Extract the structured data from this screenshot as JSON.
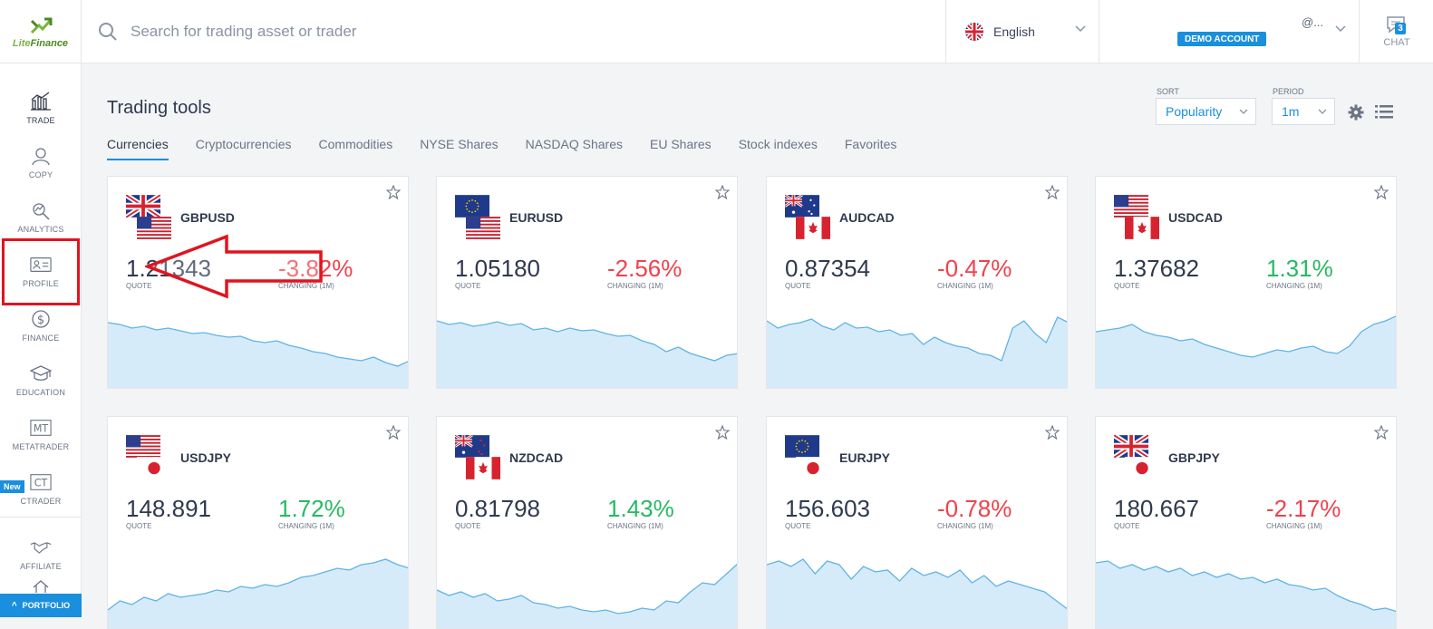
{
  "brand": {
    "logo_left": "Lite",
    "logo_right": "Finance"
  },
  "header": {
    "search_placeholder": "Search for trading asset or trader",
    "language": "English",
    "account_badge": "DEMO ACCOUNT",
    "account_email": "@...",
    "chat_label": "CHAT",
    "chat_count": "3"
  },
  "sidebar": {
    "items": [
      {
        "label": "TRADE",
        "icon": "chart-icon"
      },
      {
        "label": "COPY",
        "icon": "user-icon"
      },
      {
        "label": "ANALYTICS",
        "icon": "analytics-icon"
      },
      {
        "label": "PROFILE",
        "icon": "id-card-icon"
      },
      {
        "label": "FINANCE",
        "icon": "dollar-icon"
      },
      {
        "label": "EDUCATION",
        "icon": "graduation-cap-icon"
      },
      {
        "label": "METATRADER",
        "icon": "mt-icon",
        "glyph": "MT"
      },
      {
        "label": "CTRADER",
        "icon": "ct-icon",
        "glyph": "CT"
      },
      {
        "label": "AFFILIATE",
        "icon": "handshake-icon"
      }
    ],
    "new_badge": "New",
    "portfolio_label": "PORTFOLIO"
  },
  "main": {
    "title": "Trading tools",
    "tabs": [
      "Currencies",
      "Cryptocurrencies",
      "Commodities",
      "NYSE Shares",
      "NASDAQ Shares",
      "EU Shares",
      "Stock indexes",
      "Favorites"
    ],
    "sort": {
      "label": "SORT",
      "value": "Popularity"
    },
    "period": {
      "label": "PERIOD",
      "value": "1m"
    },
    "quote_label": "QUOTE",
    "change_label": "CHANGING (1M)",
    "cards": [
      {
        "symbol": "GBPUSD",
        "quote": "1.21343",
        "change": "-3.82%",
        "dir": "neg",
        "base": "uk",
        "quote_flag": "us",
        "trend": [
          0.72,
          0.7,
          0.66,
          0.68,
          0.64,
          0.66,
          0.63,
          0.6,
          0.61,
          0.58,
          0.56,
          0.57,
          0.52,
          0.5,
          0.52,
          0.47,
          0.44,
          0.4,
          0.38,
          0.34,
          0.32,
          0.3,
          0.34,
          0.28,
          0.24,
          0.3
        ]
      },
      {
        "symbol": "EURUSD",
        "quote": "1.05180",
        "change": "-2.56%",
        "dir": "neg",
        "base": "eu",
        "quote_flag": "us",
        "trend": [
          0.74,
          0.7,
          0.72,
          0.68,
          0.7,
          0.73,
          0.69,
          0.71,
          0.64,
          0.66,
          0.62,
          0.66,
          0.63,
          0.64,
          0.6,
          0.57,
          0.58,
          0.52,
          0.48,
          0.4,
          0.45,
          0.38,
          0.34,
          0.3,
          0.36,
          0.38
        ]
      },
      {
        "symbol": "AUDCAD",
        "quote": "0.87354",
        "change": "-0.47%",
        "dir": "neg",
        "base": "au",
        "quote_flag": "ca",
        "trend": [
          0.74,
          0.66,
          0.7,
          0.72,
          0.76,
          0.68,
          0.64,
          0.72,
          0.66,
          0.67,
          0.62,
          0.64,
          0.58,
          0.6,
          0.48,
          0.56,
          0.5,
          0.46,
          0.44,
          0.38,
          0.36,
          0.3,
          0.66,
          0.74,
          0.6,
          0.5,
          0.78,
          0.72
        ]
      },
      {
        "symbol": "USDCAD",
        "quote": "1.37682",
        "change": "1.31%",
        "dir": "pos",
        "base": "us",
        "quote_flag": "ca",
        "trend": [
          0.62,
          0.64,
          0.66,
          0.7,
          0.62,
          0.58,
          0.56,
          0.52,
          0.54,
          0.48,
          0.44,
          0.4,
          0.36,
          0.34,
          0.38,
          0.42,
          0.4,
          0.44,
          0.46,
          0.4,
          0.38,
          0.46,
          0.62,
          0.7,
          0.74,
          0.8
        ]
      },
      {
        "symbol": "USDJPY",
        "quote": "148.891",
        "change": "1.72%",
        "dir": "pos",
        "base": "us",
        "quote_flag": "jp",
        "trend": [
          0.2,
          0.3,
          0.26,
          0.34,
          0.3,
          0.38,
          0.34,
          0.36,
          0.38,
          0.42,
          0.4,
          0.46,
          0.44,
          0.48,
          0.46,
          0.5,
          0.56,
          0.58,
          0.62,
          0.66,
          0.64,
          0.7,
          0.72,
          0.76,
          0.7,
          0.66
        ]
      },
      {
        "symbol": "NZDCAD",
        "quote": "0.81798",
        "change": "1.43%",
        "dir": "pos",
        "base": "nz",
        "quote_flag": "ca",
        "trend": [
          0.42,
          0.36,
          0.4,
          0.34,
          0.38,
          0.3,
          0.32,
          0.36,
          0.28,
          0.26,
          0.22,
          0.24,
          0.2,
          0.18,
          0.2,
          0.16,
          0.18,
          0.22,
          0.2,
          0.3,
          0.28,
          0.4,
          0.5,
          0.48,
          0.6,
          0.72
        ]
      },
      {
        "symbol": "EURJPY",
        "quote": "156.603",
        "change": "-0.78%",
        "dir": "neg",
        "base": "eu",
        "quote_flag": "jp",
        "trend": [
          0.7,
          0.74,
          0.68,
          0.76,
          0.6,
          0.74,
          0.7,
          0.54,
          0.68,
          0.62,
          0.64,
          0.52,
          0.66,
          0.58,
          0.62,
          0.56,
          0.64,
          0.5,
          0.58,
          0.46,
          0.52,
          0.48,
          0.44,
          0.4,
          0.3,
          0.2
        ]
      },
      {
        "symbol": "GBPJPY",
        "quote": "180.667",
        "change": "-2.17%",
        "dir": "neg",
        "base": "uk",
        "quote_flag": "jp",
        "trend": [
          0.72,
          0.74,
          0.66,
          0.7,
          0.64,
          0.68,
          0.62,
          0.66,
          0.58,
          0.62,
          0.56,
          0.6,
          0.54,
          0.56,
          0.5,
          0.54,
          0.48,
          0.46,
          0.42,
          0.44,
          0.36,
          0.3,
          0.26,
          0.2,
          0.22,
          0.18
        ]
      }
    ]
  },
  "colors": {
    "accent": "#1a8fdd",
    "negative": "#f0414b",
    "positive": "#27b962",
    "spark_fill": "#d6ebf9",
    "spark_line": "#5fb4e6",
    "highlight": "#e0141f"
  }
}
